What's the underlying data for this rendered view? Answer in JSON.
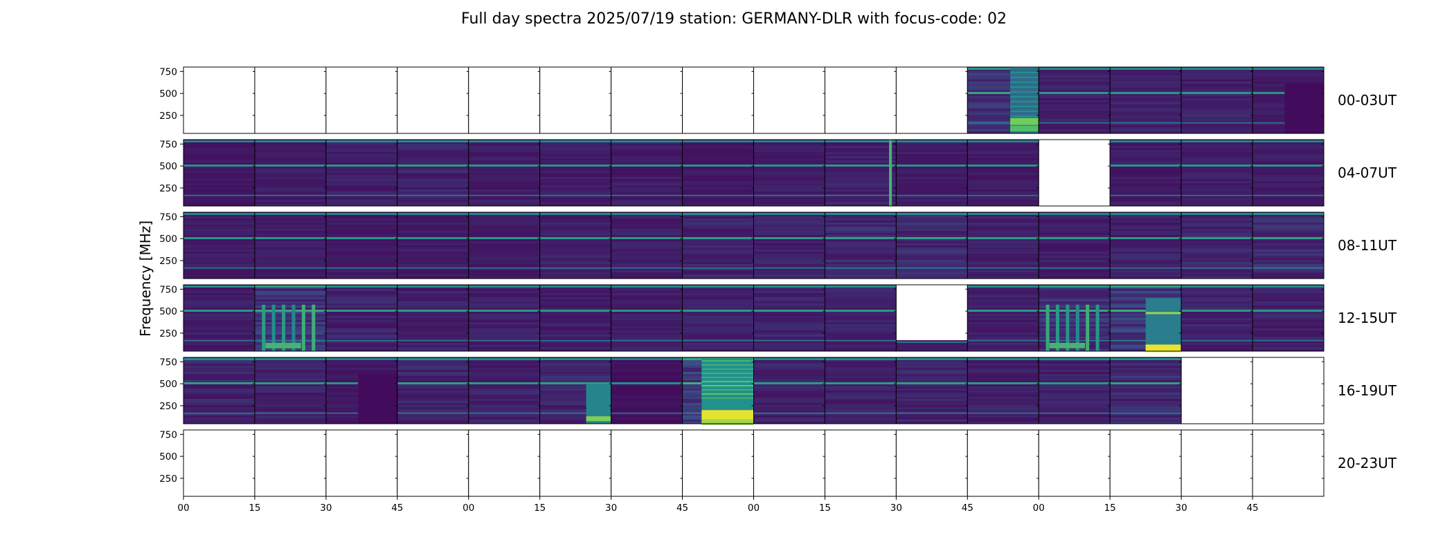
{
  "chart_data": {
    "type": "heatmap",
    "title": "Full day spectra 2025/07/19 station: GERMANY-DLR with focus-code: 02",
    "ylabel": "Frequency [MHz]",
    "yticks": [
      250,
      500,
      750
    ],
    "ylim": [
      45,
      800
    ],
    "xticks": [
      "00",
      "15",
      "30",
      "45",
      "00",
      "15",
      "30",
      "45",
      "00",
      "15",
      "30",
      "45",
      "00",
      "15",
      "30",
      "45"
    ],
    "colormap": [
      "#440154",
      "#3b528b",
      "#21918c",
      "#5ec962",
      "#fde725"
    ],
    "rows": [
      {
        "label": "00-03UT",
        "panels": [
          {
            "status": "empty",
            "intensity": 0
          },
          {
            "status": "empty",
            "intensity": 0
          },
          {
            "status": "empty",
            "intensity": 0
          },
          {
            "status": "empty",
            "intensity": 0
          },
          {
            "status": "empty",
            "intensity": 0
          },
          {
            "status": "empty",
            "intensity": 0
          },
          {
            "status": "empty",
            "intensity": 0
          },
          {
            "status": "empty",
            "intensity": 0
          },
          {
            "status": "empty",
            "intensity": 0
          },
          {
            "status": "empty",
            "intensity": 0
          },
          {
            "status": "empty",
            "intensity": 0
          },
          {
            "status": "data",
            "intensity": 0.45,
            "burst": "late"
          },
          {
            "status": "data",
            "intensity": 0.3
          },
          {
            "status": "data",
            "intensity": 0.3
          },
          {
            "status": "data",
            "intensity": 0.3
          },
          {
            "status": "data",
            "intensity": 0.25,
            "burst": "dark-right"
          }
        ]
      },
      {
        "label": "04-07UT",
        "panels": [
          {
            "status": "data",
            "intensity": 0.2
          },
          {
            "status": "data",
            "intensity": 0.25
          },
          {
            "status": "data",
            "intensity": 0.28
          },
          {
            "status": "data",
            "intensity": 0.35
          },
          {
            "status": "data",
            "intensity": 0.25
          },
          {
            "status": "data",
            "intensity": 0.25
          },
          {
            "status": "data",
            "intensity": 0.28
          },
          {
            "status": "data",
            "intensity": 0.22
          },
          {
            "status": "data",
            "intensity": 0.25
          },
          {
            "status": "data",
            "intensity": 0.3,
            "burst": "line-right"
          },
          {
            "status": "data",
            "intensity": 0.25
          },
          {
            "status": "data",
            "intensity": 0.25
          },
          {
            "status": "empty",
            "intensity": 0
          },
          {
            "status": "data",
            "intensity": 0.25
          },
          {
            "status": "data",
            "intensity": 0.25
          },
          {
            "status": "data",
            "intensity": 0.25
          }
        ]
      },
      {
        "label": "08-11UT",
        "panels": [
          {
            "status": "data",
            "intensity": 0.25
          },
          {
            "status": "data",
            "intensity": 0.25
          },
          {
            "status": "data",
            "intensity": 0.25
          },
          {
            "status": "data",
            "intensity": 0.25
          },
          {
            "status": "data",
            "intensity": 0.25
          },
          {
            "status": "data",
            "intensity": 0.3
          },
          {
            "status": "data",
            "intensity": 0.28
          },
          {
            "status": "data",
            "intensity": 0.35
          },
          {
            "status": "data",
            "intensity": 0.3
          },
          {
            "status": "data",
            "intensity": 0.38
          },
          {
            "status": "data",
            "intensity": 0.4
          },
          {
            "status": "data",
            "intensity": 0.3
          },
          {
            "status": "data",
            "intensity": 0.28
          },
          {
            "status": "data",
            "intensity": 0.3
          },
          {
            "status": "data",
            "intensity": 0.35
          },
          {
            "status": "data",
            "intensity": 0.4
          }
        ]
      },
      {
        "label": "12-15UT",
        "panels": [
          {
            "status": "data",
            "intensity": 0.28
          },
          {
            "status": "data",
            "intensity": 0.5,
            "burst": "vertical-bands"
          },
          {
            "status": "data",
            "intensity": 0.35
          },
          {
            "status": "data",
            "intensity": 0.3
          },
          {
            "status": "data",
            "intensity": 0.28
          },
          {
            "status": "data",
            "intensity": 0.28
          },
          {
            "status": "data",
            "intensity": 0.28
          },
          {
            "status": "data",
            "intensity": 0.3
          },
          {
            "status": "data",
            "intensity": 0.32
          },
          {
            "status": "data",
            "intensity": 0.3
          },
          {
            "status": "partial",
            "intensity": 0.2
          },
          {
            "status": "data",
            "intensity": 0.3
          },
          {
            "status": "data",
            "intensity": 0.45,
            "burst": "vertical-bands"
          },
          {
            "status": "data",
            "intensity": 0.55,
            "burst": "bottom-yellow"
          },
          {
            "status": "data",
            "intensity": 0.3
          },
          {
            "status": "data",
            "intensity": 0.3
          }
        ]
      },
      {
        "label": "16-19UT",
        "panels": [
          {
            "status": "data",
            "intensity": 0.35
          },
          {
            "status": "data",
            "intensity": 0.3
          },
          {
            "status": "data",
            "intensity": 0.22,
            "burst": "dark-right"
          },
          {
            "status": "data",
            "intensity": 0.35
          },
          {
            "status": "data",
            "intensity": 0.3
          },
          {
            "status": "data",
            "intensity": 0.35,
            "burst": "bottom-right"
          },
          {
            "status": "data",
            "intensity": 0.15
          },
          {
            "status": "data",
            "intensity": 0.6,
            "burst": "strong-block"
          },
          {
            "status": "data",
            "intensity": 0.3
          },
          {
            "status": "data",
            "intensity": 0.3
          },
          {
            "status": "data",
            "intensity": 0.35
          },
          {
            "status": "data",
            "intensity": 0.3
          },
          {
            "status": "data",
            "intensity": 0.3
          },
          {
            "status": "data",
            "intensity": 0.4
          },
          {
            "status": "empty",
            "intensity": 0
          },
          {
            "status": "empty",
            "intensity": 0
          }
        ]
      },
      {
        "label": "20-23UT",
        "panels": [
          {
            "status": "empty",
            "intensity": 0
          },
          {
            "status": "empty",
            "intensity": 0
          },
          {
            "status": "empty",
            "intensity": 0
          },
          {
            "status": "empty",
            "intensity": 0
          },
          {
            "status": "empty",
            "intensity": 0
          },
          {
            "status": "empty",
            "intensity": 0
          },
          {
            "status": "empty",
            "intensity": 0
          },
          {
            "status": "empty",
            "intensity": 0
          },
          {
            "status": "empty",
            "intensity": 0
          },
          {
            "status": "empty",
            "intensity": 0
          },
          {
            "status": "empty",
            "intensity": 0
          },
          {
            "status": "empty",
            "intensity": 0
          },
          {
            "status": "empty",
            "intensity": 0
          },
          {
            "status": "empty",
            "intensity": 0
          },
          {
            "status": "empty",
            "intensity": 0
          },
          {
            "status": "empty",
            "intensity": 0
          }
        ]
      }
    ]
  }
}
